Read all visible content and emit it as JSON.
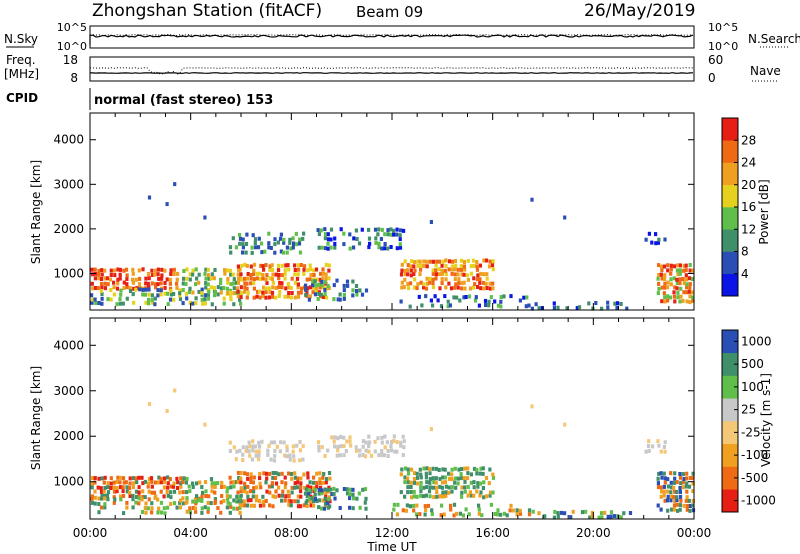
{
  "header": {
    "title": "Zhongshan Station (fitACF)",
    "beam": "Beam 09",
    "date": "26/May/2019"
  },
  "sky_panel": {
    "left_label": "N.Sky",
    "left_ticks": [
      "10^5",
      "10^0"
    ],
    "right_ticks": [
      "10^5",
      "10^0"
    ],
    "right_label": "N.Search"
  },
  "freq_panel": {
    "left_label_line1": "Freq.",
    "left_label_line2": "[MHz]",
    "left_ticks": [
      "18",
      "8"
    ],
    "right_ticks": [
      "60",
      "0"
    ],
    "right_label": "Nave"
  },
  "cpid": {
    "label": "CPID",
    "text": "normal (fast stereo) 153"
  },
  "colors": {
    "power_scale": [
      "#0a14e6",
      "#2a4fb4",
      "#3f8f6a",
      "#5fbf4a",
      "#e6d21e",
      "#f0a020",
      "#ee6a14",
      "#e61e14"
    ],
    "velocity_scale": [
      "#e61e14",
      "#ee6a14",
      "#f0a020",
      "#f5c878",
      "#c8c8c8",
      "#5fbf4a",
      "#3f8f6a",
      "#2a4fb4"
    ]
  },
  "chart_data": [
    {
      "type": "heatmap",
      "panel": "power",
      "xlabel": "",
      "ylabel": "Slant Range [km]",
      "x_ticks": [
        "00:00",
        "04:00",
        "08:00",
        "12:00",
        "16:00",
        "20:00",
        "00:00"
      ],
      "y_ticks": [
        1000,
        2000,
        3000,
        4000
      ],
      "ylim": [
        180,
        4600
      ],
      "colorbar_label": "Power [dB]",
      "colorbar_ticks": [
        4,
        8,
        12,
        16,
        20,
        24,
        28
      ],
      "colorbar_range": [
        0,
        32
      ]
    },
    {
      "type": "heatmap",
      "panel": "velocity",
      "xlabel": "Time UT",
      "ylabel": "Slant Range [km]",
      "x_ticks": [
        "00:00",
        "04:00",
        "08:00",
        "12:00",
        "16:00",
        "20:00",
        "00:00"
      ],
      "y_ticks": [
        1000,
        2000,
        3000,
        4000
      ],
      "ylim": [
        180,
        4600
      ],
      "colorbar_label": "Velocity [m s-1]",
      "colorbar_ticks": [
        "-1000",
        "-500",
        "-100",
        "-25",
        "25",
        "100",
        "500",
        "1000"
      ]
    }
  ]
}
